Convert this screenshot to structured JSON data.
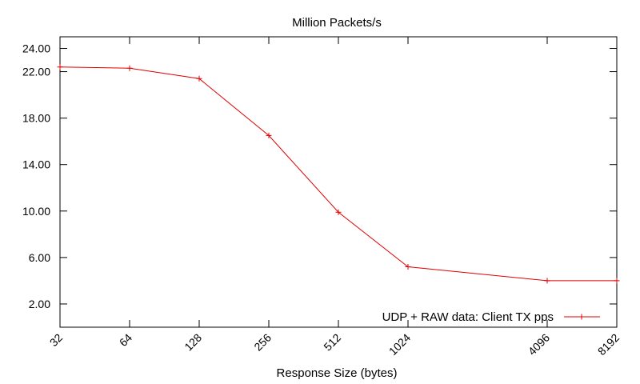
{
  "chart_data": {
    "type": "line",
    "title": "Million Packets/s",
    "xlabel": "Response Size (bytes)",
    "ylabel": "",
    "x_scale": "log2",
    "xlim": [
      32,
      8192
    ],
    "ylim": [
      0,
      25
    ],
    "y_ticks": [
      2.0,
      6.0,
      10.0,
      14.0,
      18.0,
      22.0,
      24.0
    ],
    "y_tick_labels": [
      "2.00",
      "6.00",
      "10.00",
      "14.00",
      "18.00",
      "22.00",
      "24.00"
    ],
    "x_ticks": [
      32,
      64,
      128,
      256,
      512,
      1024,
      4096,
      8192
    ],
    "x_tick_labels": [
      "32",
      "64",
      "128",
      "256",
      "512",
      "1024",
      "4096",
      "8192"
    ],
    "grid": false,
    "legend_position": "bottom-right",
    "series": [
      {
        "name": "UDP + RAW data: Client TX pps",
        "color": "#e00000",
        "x": [
          32,
          64,
          128,
          256,
          512,
          1024,
          4096,
          8192
        ],
        "values": [
          22.4,
          22.3,
          21.4,
          16.5,
          9.9,
          5.2,
          4.0,
          4.0
        ]
      }
    ]
  }
}
